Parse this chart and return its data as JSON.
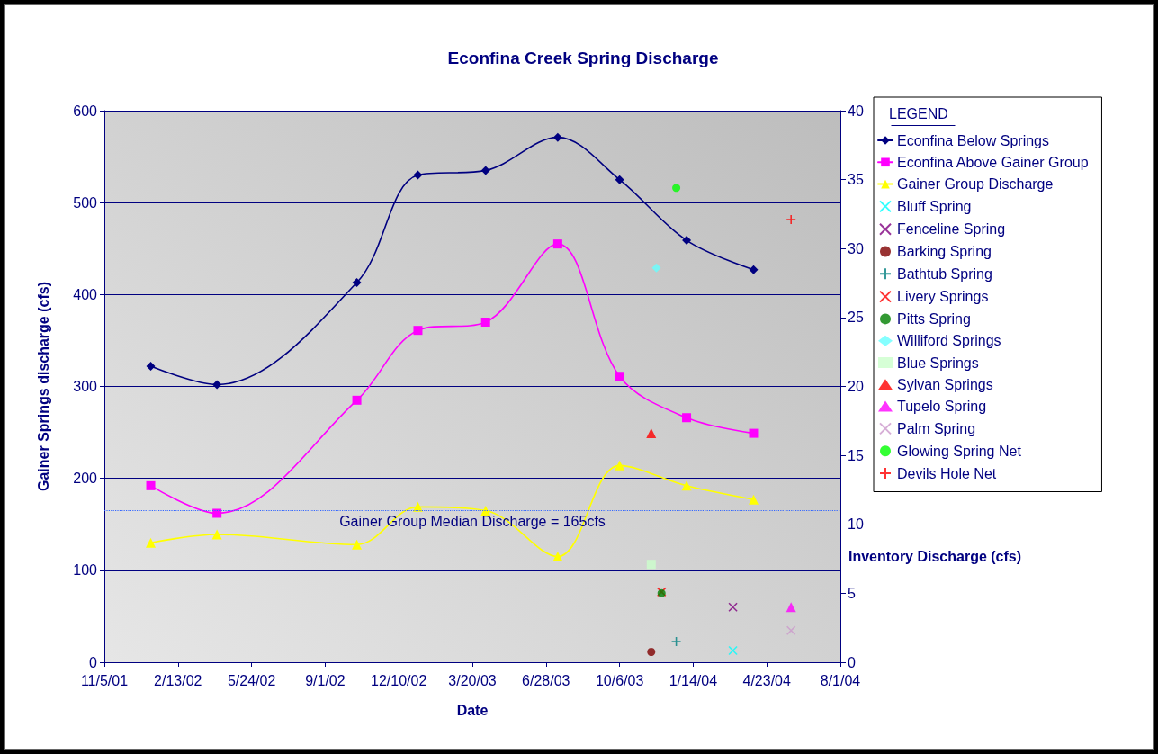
{
  "chart_data": {
    "type": "line",
    "title": "Econfina Creek Spring Discharge",
    "xlabel": "Date",
    "ylabel": "Gainer Springs discharge (cfs)",
    "y2label": "Inventory Discharge (cfs)",
    "legend_title": "LEGEND",
    "legend": "right",
    "grid": "y",
    "x": [
      "2002-01-07",
      "2002-04-07",
      "2002-10-14",
      "2003-01-05",
      "2003-04-07",
      "2003-07-14",
      "2003-10-06",
      "2004-01-05",
      "2004-04-05"
    ],
    "xlim": [
      "2001-11-05",
      "2004-08-01"
    ],
    "xticks": [
      {
        "value": "2001-11-05",
        "label": "11/5/01"
      },
      {
        "value": "2002-02-13",
        "label": "2/13/02"
      },
      {
        "value": "2002-05-24",
        "label": "5/24/02"
      },
      {
        "value": "2002-09-01",
        "label": "9/1/02"
      },
      {
        "value": "2002-12-10",
        "label": "12/10/02"
      },
      {
        "value": "2003-03-20",
        "label": "3/20/03"
      },
      {
        "value": "2003-06-28",
        "label": "6/28/03"
      },
      {
        "value": "2003-10-06",
        "label": "10/6/03"
      },
      {
        "value": "2004-01-14",
        "label": "1/14/04"
      },
      {
        "value": "2004-04-23",
        "label": "4/23/04"
      },
      {
        "value": "2004-08-01",
        "label": "8/1/04"
      }
    ],
    "ylim": [
      0,
      600
    ],
    "yticks": [
      0,
      100,
      200,
      300,
      400,
      500,
      600
    ],
    "y2lim": [
      0,
      40
    ],
    "y2ticks": [
      0,
      5,
      10,
      15,
      20,
      25,
      30,
      35,
      40
    ],
    "ref_lines": [
      {
        "axis": "y",
        "value": 165,
        "label": "Gainer Group Median Discharge = 165cfs",
        "color": "#3366ff",
        "line_style": "dotted"
      }
    ],
    "series": [
      {
        "name": "Econfina Below Springs",
        "color": "#000080",
        "marker": "diamond",
        "values": [
          322,
          302,
          413,
          530,
          535,
          571,
          525,
          459,
          427
        ]
      },
      {
        "name": "Econfina Above Gainer Group",
        "color": "#ff00ff",
        "marker": "square",
        "values": [
          192,
          162,
          285,
          361,
          370,
          455,
          311,
          266,
          249
        ]
      },
      {
        "name": "Gainer Group Discharge",
        "color": "#ffff00",
        "marker": "triangle",
        "values": [
          130,
          139,
          128,
          169,
          165,
          115,
          214,
          192,
          177
        ]
      },
      {
        "name": "Bluff Spring",
        "type": "scatter",
        "axis": "y2",
        "color": "#00ffff",
        "marker": "cross",
        "x": [
          "2004-03-08"
        ],
        "values": [
          0.85
        ]
      },
      {
        "name": "Fenceline Spring",
        "type": "scatter",
        "axis": "y2",
        "color": "#800080",
        "marker": "cross",
        "x": [
          "2004-03-08"
        ],
        "values": [
          4.0
        ]
      },
      {
        "name": "Barking Spring",
        "type": "scatter",
        "axis": "y2",
        "color": "#800000",
        "marker": "circle",
        "x": [
          "2003-11-18"
        ],
        "values": [
          0.75
        ]
      },
      {
        "name": "Bathtub Spring",
        "type": "scatter",
        "axis": "y2",
        "color": "#008080",
        "marker": "plus",
        "x": [
          "2003-12-22"
        ],
        "values": [
          1.5
        ]
      },
      {
        "name": "Livery Springs",
        "type": "scatter",
        "axis": "y2",
        "color": "#ff0000",
        "marker": "cross",
        "x": [
          "2003-12-02"
        ],
        "values": [
          5.1
        ]
      },
      {
        "name": "Pitts Spring",
        "type": "scatter",
        "axis": "y2",
        "color": "#008000",
        "marker": "circle",
        "x": [
          "2003-12-02"
        ],
        "values": [
          5.0
        ]
      },
      {
        "name": "Williford Springs",
        "type": "scatter",
        "axis": "y2",
        "color": "#66ffff",
        "marker": "diamond",
        "x": [
          "2003-11-25"
        ],
        "values": [
          28.6
        ]
      },
      {
        "name": "Blue Springs",
        "type": "scatter",
        "axis": "y2",
        "color": "#ccffcc",
        "marker": "square",
        "x": [
          "2003-11-18"
        ],
        "values": [
          7.1
        ]
      },
      {
        "name": "Sylvan Springs",
        "type": "scatter",
        "axis": "y2",
        "color": "#ff0000",
        "marker": "triangle",
        "x": [
          "2003-11-18"
        ],
        "values": [
          16.6
        ]
      },
      {
        "name": "Tupelo Spring",
        "type": "scatter",
        "axis": "y2",
        "color": "#ff00ff",
        "marker": "triangle",
        "x": [
          "2004-05-26"
        ],
        "values": [
          4.0
        ]
      },
      {
        "name": "Palm Spring",
        "type": "scatter",
        "axis": "y2",
        "color": "#cc99cc",
        "marker": "cross",
        "x": [
          "2004-05-26"
        ],
        "values": [
          2.3
        ]
      },
      {
        "name": "Glowing Spring Net",
        "type": "scatter",
        "axis": "y2",
        "color": "#00ff00",
        "marker": "circle",
        "x": [
          "2003-12-22"
        ],
        "values": [
          34.4
        ]
      },
      {
        "name": "Devils Hole Net",
        "type": "scatter",
        "axis": "y2",
        "color": "#ff0000",
        "marker": "plus",
        "x": [
          "2004-05-26"
        ],
        "values": [
          32.1
        ]
      }
    ]
  }
}
